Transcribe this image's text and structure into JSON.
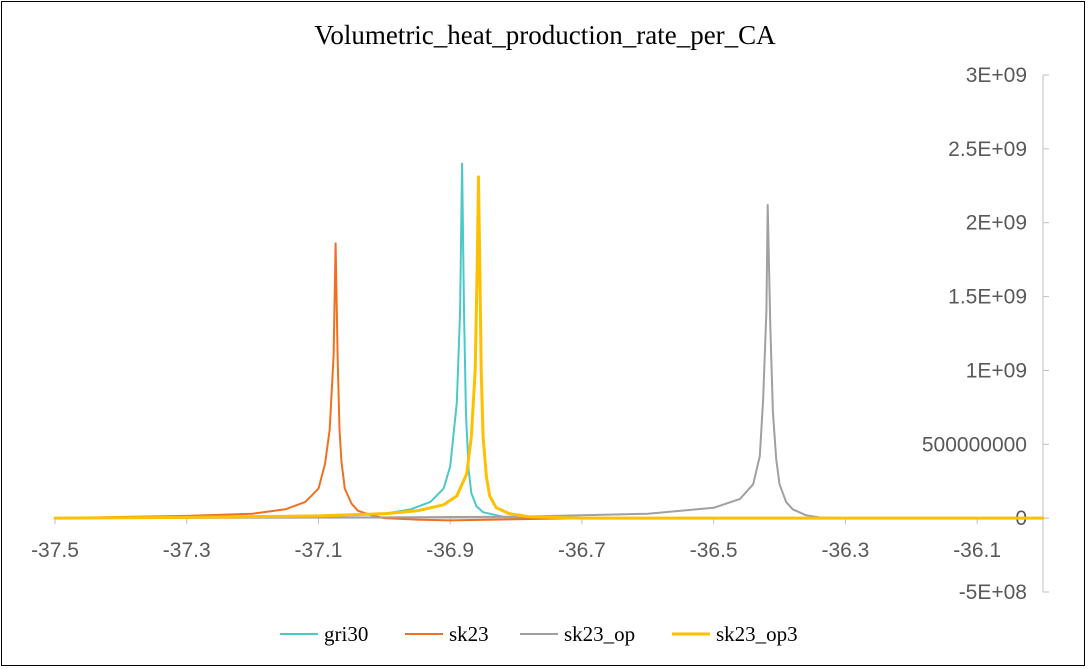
{
  "chart_data": {
    "type": "line",
    "title": "Volumetric_heat_production_rate_per_CA",
    "xlabel": "",
    "ylabel": "",
    "xlim": [
      -37.5,
      -36.0
    ],
    "ylim": [
      -500000000,
      3000000000
    ],
    "x_ticks": [
      -37.5,
      -37.3,
      -37.1,
      -36.9,
      -36.7,
      -36.5,
      -36.3,
      -36.1
    ],
    "x_tick_labels": [
      "-37.5",
      "-37.3",
      "-37.1",
      "-36.9",
      "-36.7",
      "-36.5",
      "-36.3",
      "-36.1"
    ],
    "y_ticks": [
      3000000000,
      2500000000,
      2000000000,
      1500000000,
      1000000000,
      500000000,
      0,
      -500000000
    ],
    "y_tick_labels": [
      "3E+09",
      "2.5E+09",
      "2E+09",
      "1.5E+09",
      "1E+09",
      "500000000",
      "0",
      "-5E+08"
    ],
    "grid": false,
    "legend_position": "bottom",
    "series": [
      {
        "name": "gri30",
        "color": "#4BC8C8",
        "x": [
          -37.5,
          -37.3,
          -37.1,
          -37.0,
          -36.96,
          -36.93,
          -36.91,
          -36.9,
          -36.89,
          -36.885,
          -36.882,
          -36.879,
          -36.876,
          -36.872,
          -36.868,
          -36.86,
          -36.85,
          -36.82,
          -36.78,
          -36.7,
          -36.5,
          -36.0
        ],
        "values": [
          0,
          5000000,
          15000000,
          30000000,
          60000000,
          110000000,
          200000000,
          350000000,
          780000000,
          1400000000,
          2400000000,
          1400000000,
          700000000,
          330000000,
          170000000,
          80000000,
          40000000,
          10000000,
          0,
          0,
          0,
          0
        ]
      },
      {
        "name": "sk23",
        "color": "#F07020",
        "x": [
          -37.5,
          -37.3,
          -37.2,
          -37.15,
          -37.12,
          -37.1,
          -37.09,
          -37.083,
          -37.077,
          -37.074,
          -37.071,
          -37.068,
          -37.065,
          -37.06,
          -37.05,
          -37.04,
          -37.02,
          -37.0,
          -36.95,
          -36.9,
          -36.7,
          -36.0
        ],
        "values": [
          0,
          15000000,
          30000000,
          60000000,
          110000000,
          200000000,
          370000000,
          600000000,
          1100000000,
          1860000000,
          1100000000,
          600000000,
          380000000,
          200000000,
          100000000,
          50000000,
          20000000,
          0,
          -10000000,
          -15000000,
          0,
          0
        ]
      },
      {
        "name": "sk23_op",
        "color": "#A0A0A0",
        "x": [
          -37.5,
          -37.0,
          -36.8,
          -36.6,
          -36.5,
          -36.46,
          -36.44,
          -36.43,
          -36.425,
          -36.42,
          -36.418,
          -36.414,
          -36.41,
          -36.405,
          -36.4,
          -36.39,
          -36.38,
          -36.36,
          -36.34,
          -36.3,
          -36.0
        ],
        "values": [
          0,
          5000000,
          10000000,
          30000000,
          70000000,
          130000000,
          230000000,
          420000000,
          800000000,
          1400000000,
          2120000000,
          1300000000,
          720000000,
          400000000,
          230000000,
          110000000,
          60000000,
          20000000,
          5000000,
          0,
          0
        ]
      },
      {
        "name": "sk23_op3",
        "color": "#FFC000",
        "x": [
          -37.5,
          -37.3,
          -37.1,
          -37.0,
          -36.95,
          -36.91,
          -36.89,
          -36.875,
          -36.868,
          -36.862,
          -36.859,
          -36.857,
          -36.855,
          -36.853,
          -36.85,
          -36.845,
          -36.84,
          -36.83,
          -36.81,
          -36.78,
          -36.7,
          -36.0
        ],
        "values": [
          0,
          5000000,
          15000000,
          30000000,
          50000000,
          90000000,
          150000000,
          300000000,
          550000000,
          1000000000,
          1700000000,
          2310000000,
          1700000000,
          1000000000,
          550000000,
          280000000,
          150000000,
          70000000,
          30000000,
          10000000,
          0,
          0
        ]
      }
    ]
  }
}
